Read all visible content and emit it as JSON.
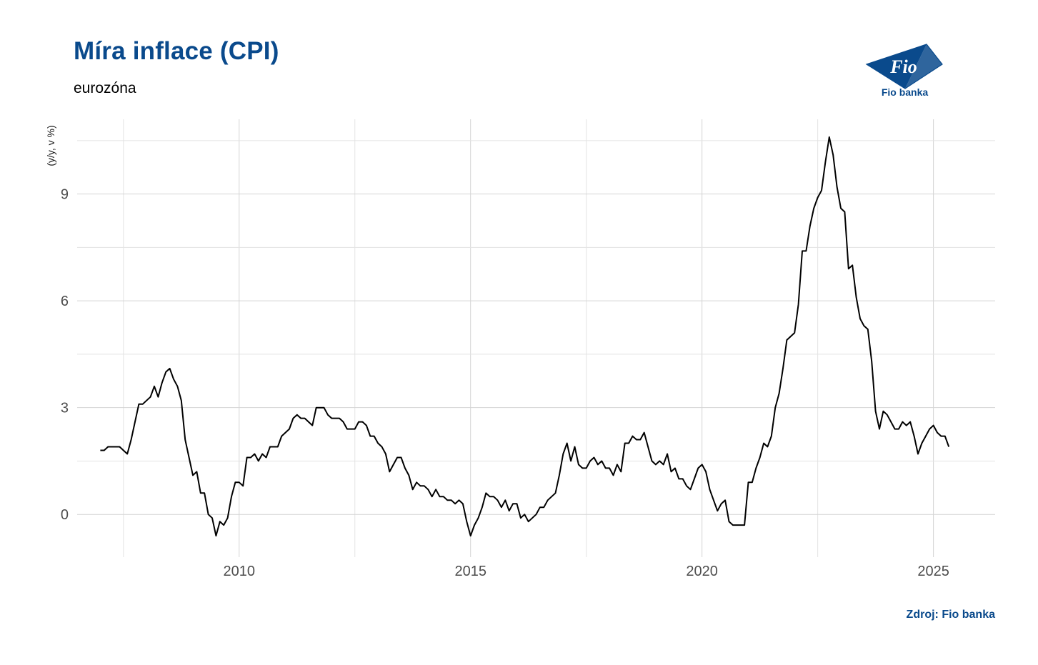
{
  "header": {
    "title": "Míra inflace (CPI)",
    "subtitle": "eurozóna"
  },
  "logo": {
    "mark_text": "Fio",
    "caption": "Fio banka",
    "color": "#0a4a8c"
  },
  "footer": {
    "source": "Zdroj: Fio banka"
  },
  "chart_data": {
    "type": "line",
    "title": "Míra inflace (CPI)",
    "subtitle": "eurozóna",
    "xlabel": "",
    "ylabel": "(y/y, v %)",
    "x_tick_labels": [
      "2010",
      "2015",
      "2020",
      "2025"
    ],
    "y_tick_labels": [
      "0",
      "3",
      "6",
      "9"
    ],
    "ylim": [
      -1.2,
      11.1
    ],
    "xlim": [
      "2006-07",
      "2026-05"
    ],
    "grid": true,
    "line_color": "#000000",
    "series": [
      {
        "start": "2007-01",
        "frequency": "monthly",
        "values": [
          1.8,
          1.8,
          1.9,
          1.9,
          1.9,
          1.9,
          1.8,
          1.7,
          2.1,
          2.6,
          3.1,
          3.1,
          3.2,
          3.3,
          3.6,
          3.3,
          3.7,
          4.0,
          4.1,
          3.8,
          3.6,
          3.2,
          2.1,
          1.6,
          1.1,
          1.2,
          0.6,
          0.6,
          0.0,
          -0.1,
          -0.6,
          -0.2,
          -0.3,
          -0.1,
          0.5,
          0.9,
          0.9,
          0.8,
          1.6,
          1.6,
          1.7,
          1.5,
          1.7,
          1.6,
          1.9,
          1.9,
          1.9,
          2.2,
          2.3,
          2.4,
          2.7,
          2.8,
          2.7,
          2.7,
          2.6,
          2.5,
          3.0,
          3.0,
          3.0,
          2.8,
          2.7,
          2.7,
          2.7,
          2.6,
          2.4,
          2.4,
          2.4,
          2.6,
          2.6,
          2.5,
          2.2,
          2.2,
          2.0,
          1.9,
          1.7,
          1.2,
          1.4,
          1.6,
          1.6,
          1.3,
          1.1,
          0.7,
          0.9,
          0.8,
          0.8,
          0.7,
          0.5,
          0.7,
          0.5,
          0.5,
          0.4,
          0.4,
          0.3,
          0.4,
          0.3,
          -0.2,
          -0.6,
          -0.3,
          -0.1,
          0.2,
          0.6,
          0.5,
          0.5,
          0.4,
          0.2,
          0.4,
          0.1,
          0.3,
          0.3,
          -0.1,
          0.0,
          -0.2,
          -0.1,
          0.0,
          0.2,
          0.2,
          0.4,
          0.5,
          0.6,
          1.1,
          1.7,
          2.0,
          1.5,
          1.9,
          1.4,
          1.3,
          1.3,
          1.5,
          1.6,
          1.4,
          1.5,
          1.3,
          1.3,
          1.1,
          1.4,
          1.2,
          2.0,
          2.0,
          2.2,
          2.1,
          2.1,
          2.3,
          1.9,
          1.5,
          1.4,
          1.5,
          1.4,
          1.7,
          1.2,
          1.3,
          1.0,
          1.0,
          0.8,
          0.7,
          1.0,
          1.3,
          1.4,
          1.2,
          0.7,
          0.4,
          0.1,
          0.3,
          0.4,
          -0.2,
          -0.3,
          -0.3,
          -0.3,
          -0.3,
          0.9,
          0.9,
          1.3,
          1.6,
          2.0,
          1.9,
          2.2,
          3.0,
          3.4,
          4.1,
          4.9,
          5.0,
          5.1,
          5.9,
          7.4,
          7.4,
          8.1,
          8.6,
          8.9,
          9.1,
          9.9,
          10.6,
          10.1,
          9.2,
          8.6,
          8.5,
          6.9,
          7.0,
          6.1,
          5.5,
          5.3,
          5.2,
          4.3,
          2.9,
          2.4,
          2.9,
          2.8,
          2.6,
          2.4,
          2.4,
          2.6,
          2.5,
          2.6,
          2.2,
          1.7,
          2.0,
          2.2,
          2.4,
          2.5,
          2.3,
          2.2,
          2.2,
          1.9
        ]
      }
    ]
  }
}
